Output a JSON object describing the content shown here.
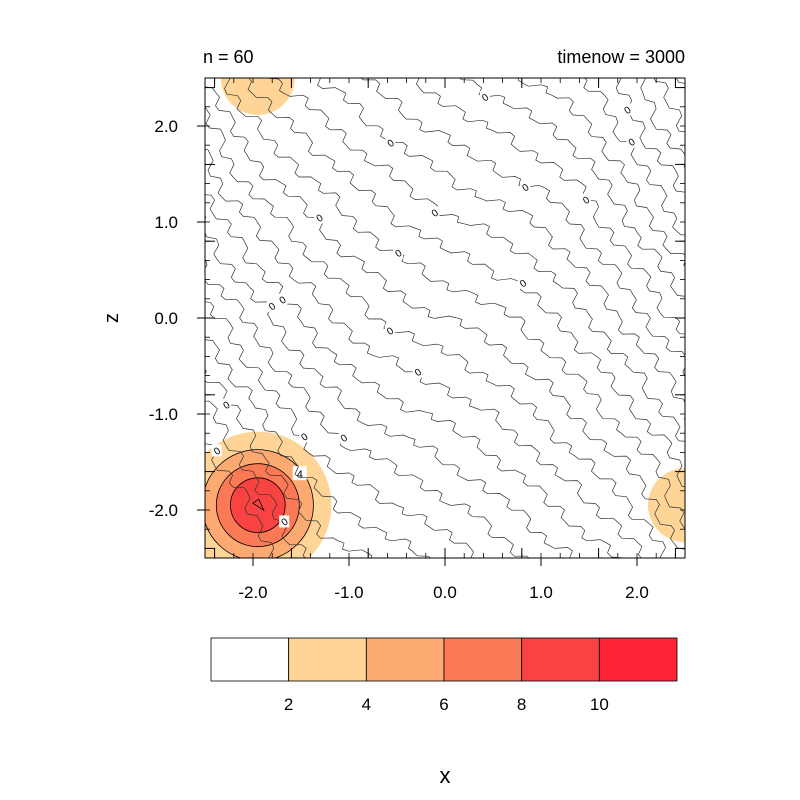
{
  "chart_data": {
    "type": "contour",
    "title_left": "n = 60",
    "title_right": "timenow = 3000",
    "xlabel": "x",
    "ylabel": "z",
    "xlim": [
      -2.5,
      2.5
    ],
    "ylim": [
      -2.5,
      2.5
    ],
    "x_ticks": [
      -2.0,
      -1.0,
      0.0,
      1.0,
      2.0
    ],
    "x_tick_labels": [
      "-2.0",
      "-1.0",
      "0.0",
      "1.0",
      "2.0"
    ],
    "y_ticks": [
      2.0,
      1.0,
      0.0,
      -1.0,
      -2.0
    ],
    "y_tick_labels": [
      "2.0",
      "1.0",
      "0.0",
      "-1.0",
      "-2.0"
    ],
    "contour_line_label": "0",
    "fill_level_label": "4",
    "colorbar": {
      "levels": [
        2,
        4,
        6,
        8,
        10
      ],
      "labels": [
        "2",
        "4",
        "6",
        "8",
        "10"
      ],
      "colors": [
        "#ffffff",
        "#fed597",
        "#fcaa72",
        "#fb7a55",
        "#f84342",
        "#fd2436"
      ]
    },
    "hotspots": [
      {
        "x": -1.95,
        "z": -1.95,
        "peak": 10
      },
      {
        "x": 2.5,
        "z": -1.95,
        "peak": 3
      },
      {
        "x": -1.95,
        "z": 2.5,
        "peak": 3
      }
    ]
  }
}
